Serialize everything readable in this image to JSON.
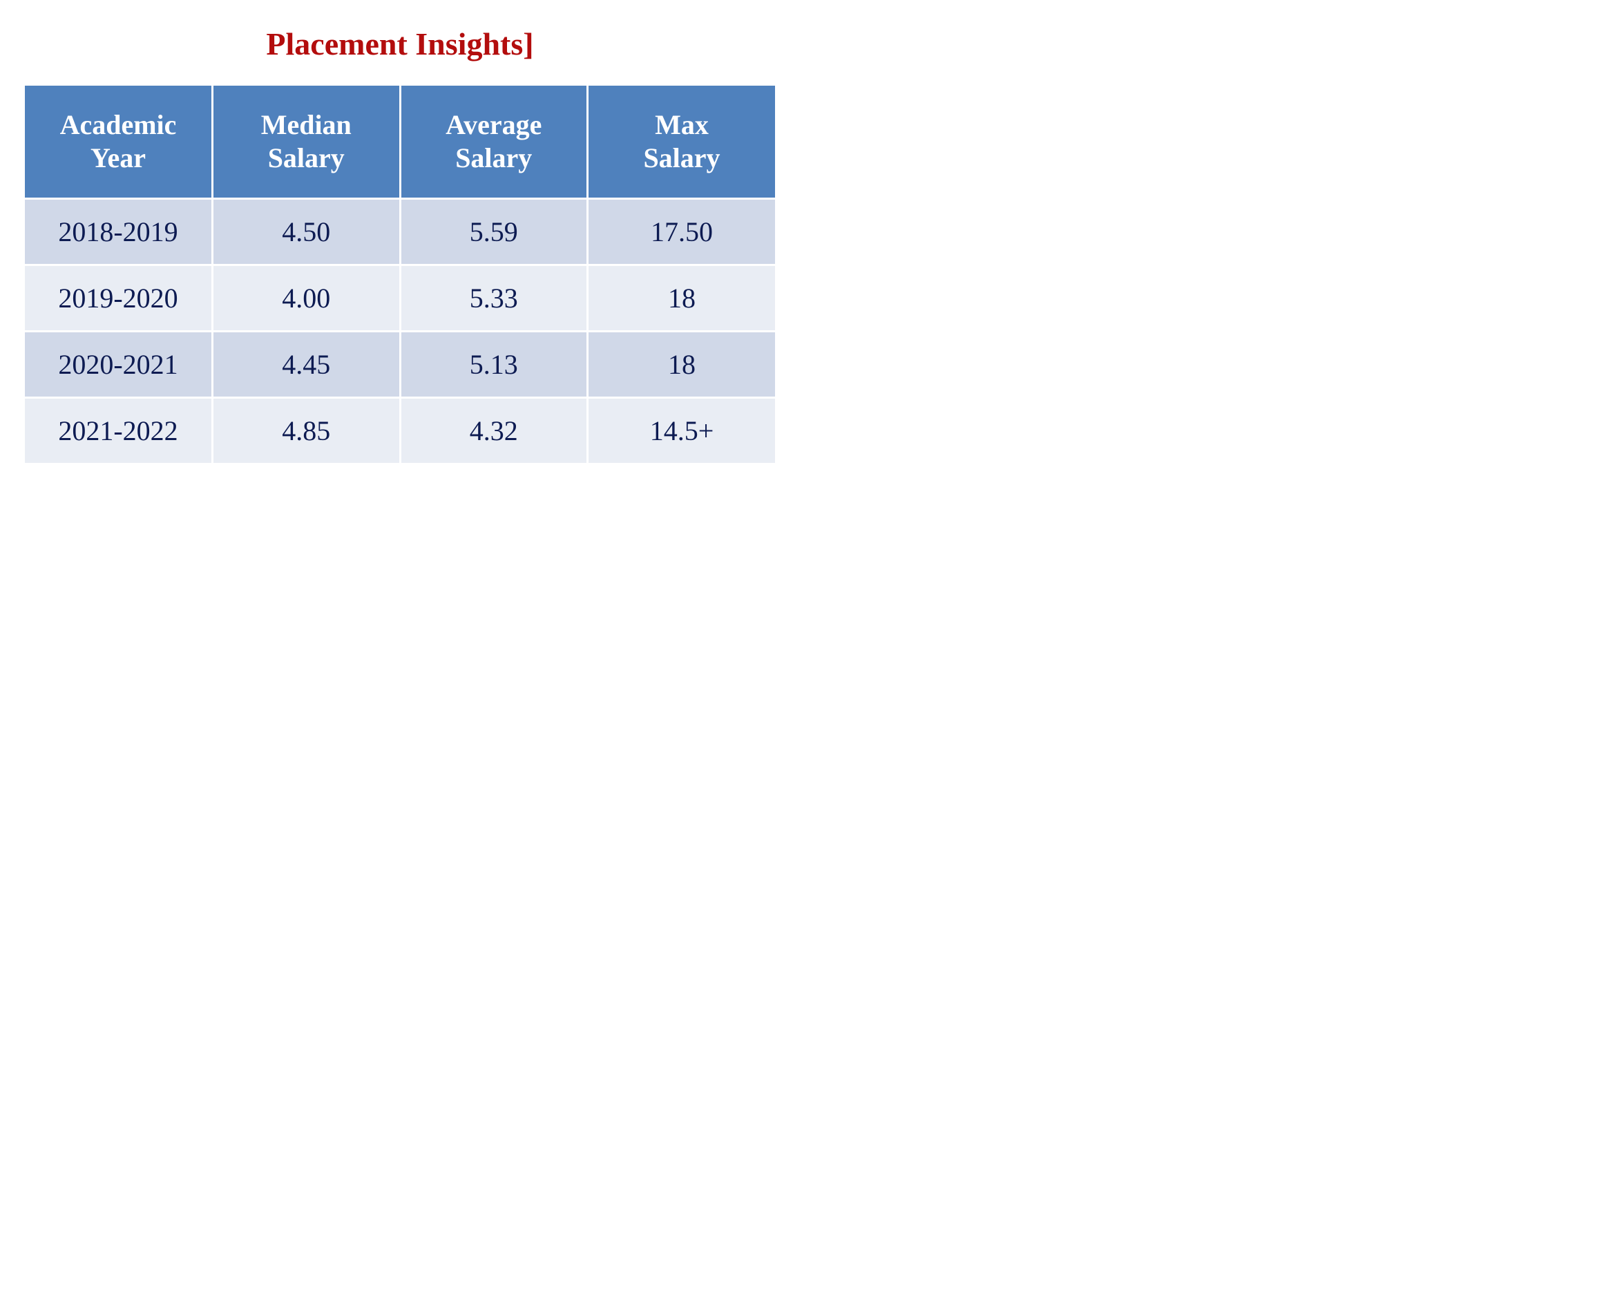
{
  "title": "Placement Insights]",
  "colors": {
    "title": "#b30d0d",
    "header_bg": "#4f81bd",
    "header_text": "#ffffff",
    "row_odd_bg": "#d0d8e8",
    "row_even_bg": "#e9edf4",
    "cell_text": "#0d1b52"
  },
  "table": {
    "headers": [
      "Academic\nYear",
      "Median\nSalary",
      "Average\nSalary",
      "Max\nSalary"
    ],
    "rows": [
      [
        "2018-2019",
        "4.50",
        "5.59",
        "17.50"
      ],
      [
        "2019-2020",
        "4.00",
        "5.33",
        "18"
      ],
      [
        "2020-2021",
        "4.45",
        "5.13",
        "18"
      ],
      [
        "2021-2022",
        "4.85",
        "4.32",
        "14.5+"
      ]
    ]
  }
}
